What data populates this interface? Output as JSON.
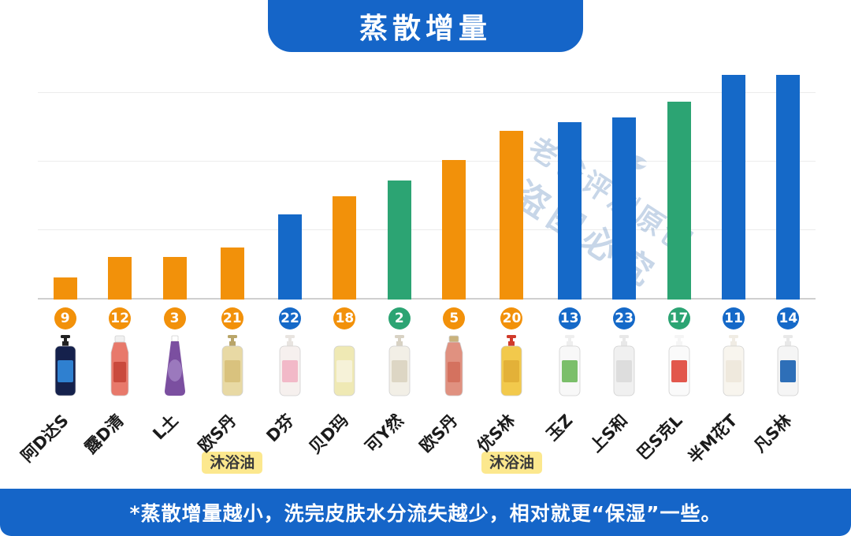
{
  "title": "蒸散增量",
  "footer_note": "*蒸散增量越小，洗完皮肤水分流失越少，相对就更“保湿”一些。",
  "watermark": {
    "line1": "老爸评测原创",
    "line2": "盗图必究"
  },
  "palette": {
    "orange": "#F2910A",
    "blue": "#1569C8",
    "green": "#2CA473",
    "banner_blue": "#1565C8",
    "tag_yellow": "#FCE88E"
  },
  "products": [
    {
      "name": "阿D达S",
      "shape": "pump",
      "cap": "#222222",
      "body": "#15214c",
      "label": "#2f80d0"
    },
    {
      "name": "露D清",
      "shape": "cap",
      "cap": "#f0f0f0",
      "body": "#e8796b",
      "label": "#c94a3d"
    },
    {
      "name": "L土",
      "shape": "pouch",
      "cap": "#ffffff",
      "body": "#7b4fa0",
      "label": "#9b79bd"
    },
    {
      "name": "欧S丹",
      "shape": "pump",
      "cap": "#b9a569",
      "body": "#e8d9a4",
      "label": "#d9c27e"
    },
    {
      "name": "D芬",
      "shape": "pump",
      "cap": "#e8e4e0",
      "body": "#f6f0ee",
      "label": "#f2b9c8"
    },
    {
      "name": "贝D玛",
      "shape": "pump",
      "cap": "#ffffff",
      "body": "#efe9b4",
      "label": "#f6f2d8"
    },
    {
      "name": "可Y然",
      "shape": "pump",
      "cap": "#d8d2c4",
      "body": "#f2efe6",
      "label": "#ddd6c4"
    },
    {
      "name": "欧S丹",
      "shape": "cap",
      "cap": "#c9b27c",
      "body": "#e09180",
      "label": "#d4725f"
    },
    {
      "name": "优S林",
      "shape": "pump",
      "cap": "#d03a2a",
      "body": "#f2c94c",
      "label": "#e3b138"
    },
    {
      "name": "玉Z",
      "shape": "pump",
      "cap": "#eeeeee",
      "body": "#f8f8f8",
      "label": "#7bbf6a"
    },
    {
      "name": "上S和",
      "shape": "pump",
      "cap": "#e8e8e8",
      "body": "#f0f0f0",
      "label": "#dddddd"
    },
    {
      "name": "巴S克L",
      "shape": "pump",
      "cap": "#f5f5f5",
      "body": "#fafafa",
      "label": "#e2574c"
    },
    {
      "name": "半M花T",
      "shape": "pump",
      "cap": "#f0ece4",
      "body": "#f8f5ee",
      "label": "#efe9dd"
    },
    {
      "name": "凡S林",
      "shape": "pump",
      "cap": "#e8e8e8",
      "body": "#f5f5f5",
      "label": "#2e6fb8"
    }
  ],
  "chart_data": {
    "type": "bar",
    "title": "蒸散增量",
    "xlabel": "",
    "ylabel": "",
    "grid": true,
    "legend": "none",
    "ylim": [
      0,
      100
    ],
    "categories": [
      "阿D达S",
      "露D清",
      "L土",
      "欧S丹",
      "D芬",
      "贝D玛",
      "可Y然",
      "欧S丹",
      "优S林",
      "玉Z",
      "上S和",
      "巴S克L",
      "半M花T",
      "凡S林"
    ],
    "badges": [
      9,
      12,
      3,
      21,
      22,
      18,
      2,
      5,
      20,
      13,
      23,
      17,
      11,
      14
    ],
    "values": [
      10,
      19,
      19,
      23,
      38,
      46,
      53,
      62,
      75,
      79,
      81,
      88,
      100,
      100
    ],
    "colors": [
      "orange",
      "orange",
      "orange",
      "orange",
      "blue",
      "orange",
      "green",
      "orange",
      "orange",
      "blue",
      "blue",
      "green",
      "blue",
      "blue"
    ],
    "tags": [
      null,
      null,
      null,
      "沐浴油",
      null,
      null,
      null,
      null,
      "沐浴油",
      null,
      null,
      null,
      null,
      null
    ],
    "note": "values are relative bar heights estimated from gridlines (unitless, max bar = 100)"
  }
}
